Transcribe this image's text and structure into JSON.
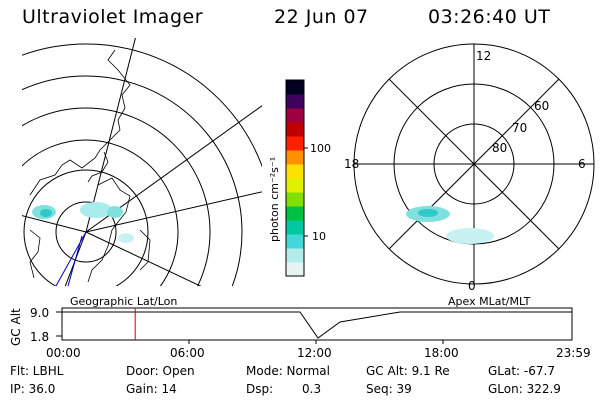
{
  "header": {
    "instrument": "Ultraviolet Imager",
    "date": "22 Jun 07",
    "time": "03:26:40 UT"
  },
  "left_panel": {
    "label": "Geographic Lat/Lon"
  },
  "right_panel": {
    "label": "Apex MLat/MLT",
    "mlt_labels": {
      "top": "12",
      "left": "18",
      "right": "6",
      "bottom": "0"
    },
    "lat_labels": [
      "60",
      "70",
      "80"
    ]
  },
  "colorbar": {
    "unit_label": "photon cm⁻²s⁻¹",
    "ticks": [
      "100",
      "10"
    ],
    "colors": [
      "#e8f4f4",
      "#b4ecec",
      "#40d8d8",
      "#00c8a0",
      "#00c040",
      "#80e000",
      "#e0f000",
      "#ffe000",
      "#ff9000",
      "#ff2000",
      "#c00000",
      "#a00040",
      "#400060",
      "#000020"
    ]
  },
  "timeline": {
    "axis_title": "GC Alt",
    "y_ticks": [
      "9.0",
      "1.8"
    ],
    "x_ticks": [
      "00:00",
      "06:00",
      "12:00",
      "18:00",
      "23:59"
    ],
    "marker_time": "03:26:40",
    "marker_color": "#d00000"
  },
  "footer": {
    "flt": "Flt: LBHL",
    "ip": "IP: 36.0",
    "door": "Door: Open",
    "gain": "Gain: 14",
    "mode": "Mode: Normal",
    "dsp_label": "Dsp:",
    "dsp_value": "0.3",
    "gc_alt": "GC Alt: 9.1 Re",
    "seq": "Seq: 39",
    "glat": "GLat: -67.7",
    "glon": "GLon: 322.9"
  }
}
